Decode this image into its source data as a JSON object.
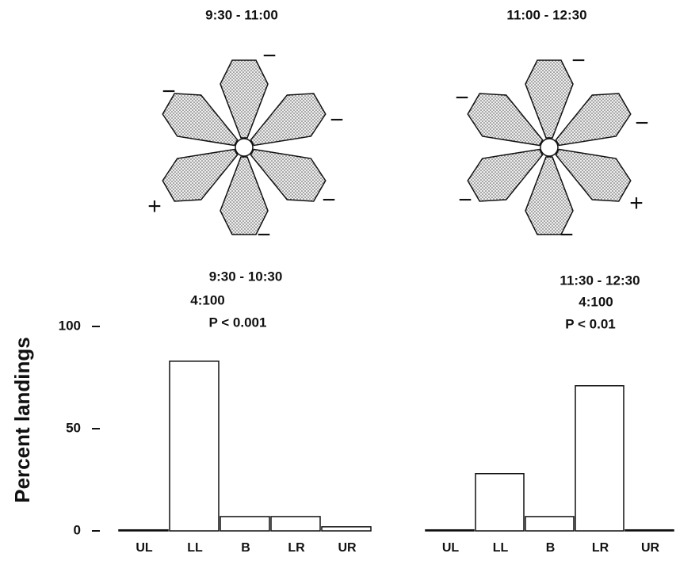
{
  "chart_data": [
    {
      "type": "bar",
      "y_label": "Percent landings",
      "annotations": [
        "9:30 - 10:30",
        "4:100",
        "P < 0.001"
      ],
      "categories": [
        "UL",
        "LL",
        "B",
        "LR",
        "UR"
      ],
      "values": [
        0.5,
        83,
        7,
        7,
        2
      ],
      "ylim": [
        0,
        100
      ],
      "yticks": [
        0,
        50,
        100
      ],
      "color": "#ffffff"
    },
    {
      "type": "bar",
      "annotations": [
        "11:30 - 12:30",
        "4:100",
        "P < 0.01"
      ],
      "categories": [
        "UL",
        "LL",
        "B",
        "LR",
        "UR"
      ],
      "values": [
        0.5,
        28,
        7,
        71,
        0.5
      ],
      "ylim": [
        0,
        100
      ],
      "color": "#ffffff"
    }
  ],
  "diagrams": [
    {
      "title": "9:30 - 11:00",
      "signs": [
        "−",
        "−",
        "−",
        "−",
        "+",
        "−"
      ]
    },
    {
      "title": "11:00 - 12:30",
      "signs": [
        "−",
        "−",
        "+",
        "−",
        "−",
        "−"
      ]
    }
  ]
}
